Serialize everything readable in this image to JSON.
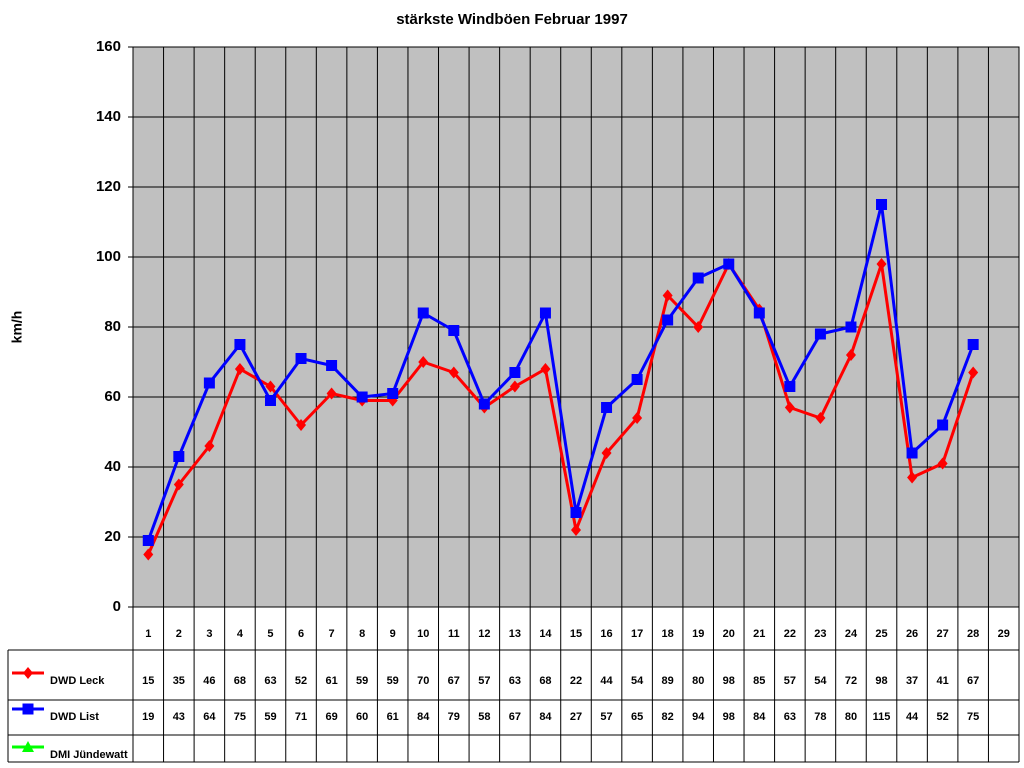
{
  "chart_data": {
    "type": "line",
    "title": "stärkste Windböen Februar 1997",
    "y_label": "km/h",
    "categories": [
      "1",
      "2",
      "3",
      "4",
      "5",
      "6",
      "7",
      "8",
      "9",
      "10",
      "11",
      "12",
      "13",
      "14",
      "15",
      "16",
      "17",
      "18",
      "19",
      "20",
      "21",
      "22",
      "23",
      "24",
      "25",
      "26",
      "27",
      "28",
      "29"
    ],
    "series": [
      {
        "name": "DWD Leck",
        "color": "#ff0000",
        "marker": "diamond",
        "values": [
          15,
          35,
          46,
          68,
          63,
          52,
          61,
          59,
          59,
          70,
          67,
          57,
          63,
          68,
          22,
          44,
          54,
          89,
          80,
          98,
          85,
          57,
          54,
          72,
          98,
          37,
          41,
          67,
          null
        ]
      },
      {
        "name": "DWD List",
        "color": "#0000ff",
        "marker": "square",
        "values": [
          19,
          43,
          64,
          75,
          59,
          71,
          69,
          60,
          61,
          84,
          79,
          58,
          67,
          84,
          27,
          57,
          65,
          82,
          94,
          98,
          84,
          63,
          78,
          80,
          115,
          44,
          52,
          75,
          null
        ]
      },
      {
        "name": "DMI Jündewatt",
        "color": "#00ff00",
        "marker": "triangle",
        "values": [
          null,
          null,
          null,
          null,
          null,
          null,
          null,
          null,
          null,
          null,
          null,
          null,
          null,
          null,
          null,
          null,
          null,
          null,
          null,
          null,
          null,
          null,
          null,
          null,
          null,
          null,
          null,
          null,
          null
        ]
      }
    ],
    "ylim": [
      0,
      160
    ],
    "yticks": [
      0,
      20,
      40,
      60,
      80,
      100,
      120,
      140,
      160
    ],
    "grid": true,
    "plot_background": "#c0c0c0"
  }
}
